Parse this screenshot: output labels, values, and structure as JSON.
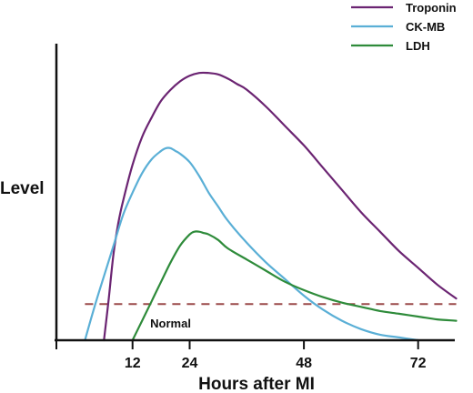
{
  "chart_data": {
    "type": "line",
    "title": "",
    "xlabel": "Hours after MI",
    "ylabel": "Level",
    "xlim": [
      -4,
      82
    ],
    "ylim": [
      0,
      1.0
    ],
    "x_ticks": [
      12,
      24,
      48,
      72
    ],
    "grid": false,
    "legend": "top-right",
    "series": [
      {
        "name": "Troponin",
        "color": "#6b2472",
        "x": [
          6,
          7,
          8,
          9,
          10,
          12,
          14,
          16,
          18,
          20,
          22,
          24,
          26,
          28,
          30,
          32,
          34,
          36,
          40,
          44,
          48,
          52,
          56,
          60,
          64,
          68,
          72,
          76,
          80
        ],
        "y": [
          0.0,
          0.15,
          0.31,
          0.42,
          0.5,
          0.63,
          0.73,
          0.8,
          0.86,
          0.9,
          0.93,
          0.95,
          0.96,
          0.96,
          0.955,
          0.94,
          0.92,
          0.9,
          0.84,
          0.77,
          0.7,
          0.62,
          0.54,
          0.46,
          0.39,
          0.32,
          0.26,
          0.2,
          0.15
        ]
      },
      {
        "name": "CK-MB",
        "color": "#5aafd6",
        "x": [
          2,
          4,
          6,
          8,
          10,
          12,
          14,
          16,
          18,
          19,
          20,
          21,
          22,
          24,
          26,
          28,
          30,
          32,
          36,
          40,
          44,
          48,
          52,
          56,
          60,
          64,
          68,
          72
        ],
        "y": [
          0.0,
          0.12,
          0.23,
          0.34,
          0.45,
          0.53,
          0.6,
          0.65,
          0.68,
          0.69,
          0.69,
          0.68,
          0.67,
          0.64,
          0.59,
          0.53,
          0.48,
          0.43,
          0.35,
          0.28,
          0.22,
          0.16,
          0.11,
          0.07,
          0.04,
          0.02,
          0.01,
          0.0
        ]
      },
      {
        "name": "LDH",
        "color": "#2e8b3a",
        "x": [
          12,
          14,
          16,
          18,
          20,
          22,
          24,
          25,
          26,
          27,
          28,
          30,
          32,
          36,
          40,
          44,
          48,
          52,
          56,
          60,
          64,
          68,
          72,
          76,
          80
        ],
        "y": [
          0.0,
          0.07,
          0.14,
          0.21,
          0.28,
          0.34,
          0.38,
          0.39,
          0.39,
          0.385,
          0.38,
          0.36,
          0.33,
          0.29,
          0.25,
          0.21,
          0.18,
          0.155,
          0.135,
          0.12,
          0.105,
          0.095,
          0.085,
          0.075,
          0.07
        ]
      }
    ],
    "reference_lines": [
      {
        "label": "Normal",
        "y": 0.13,
        "color": "#9b4a4a",
        "style": "dashed"
      }
    ]
  }
}
